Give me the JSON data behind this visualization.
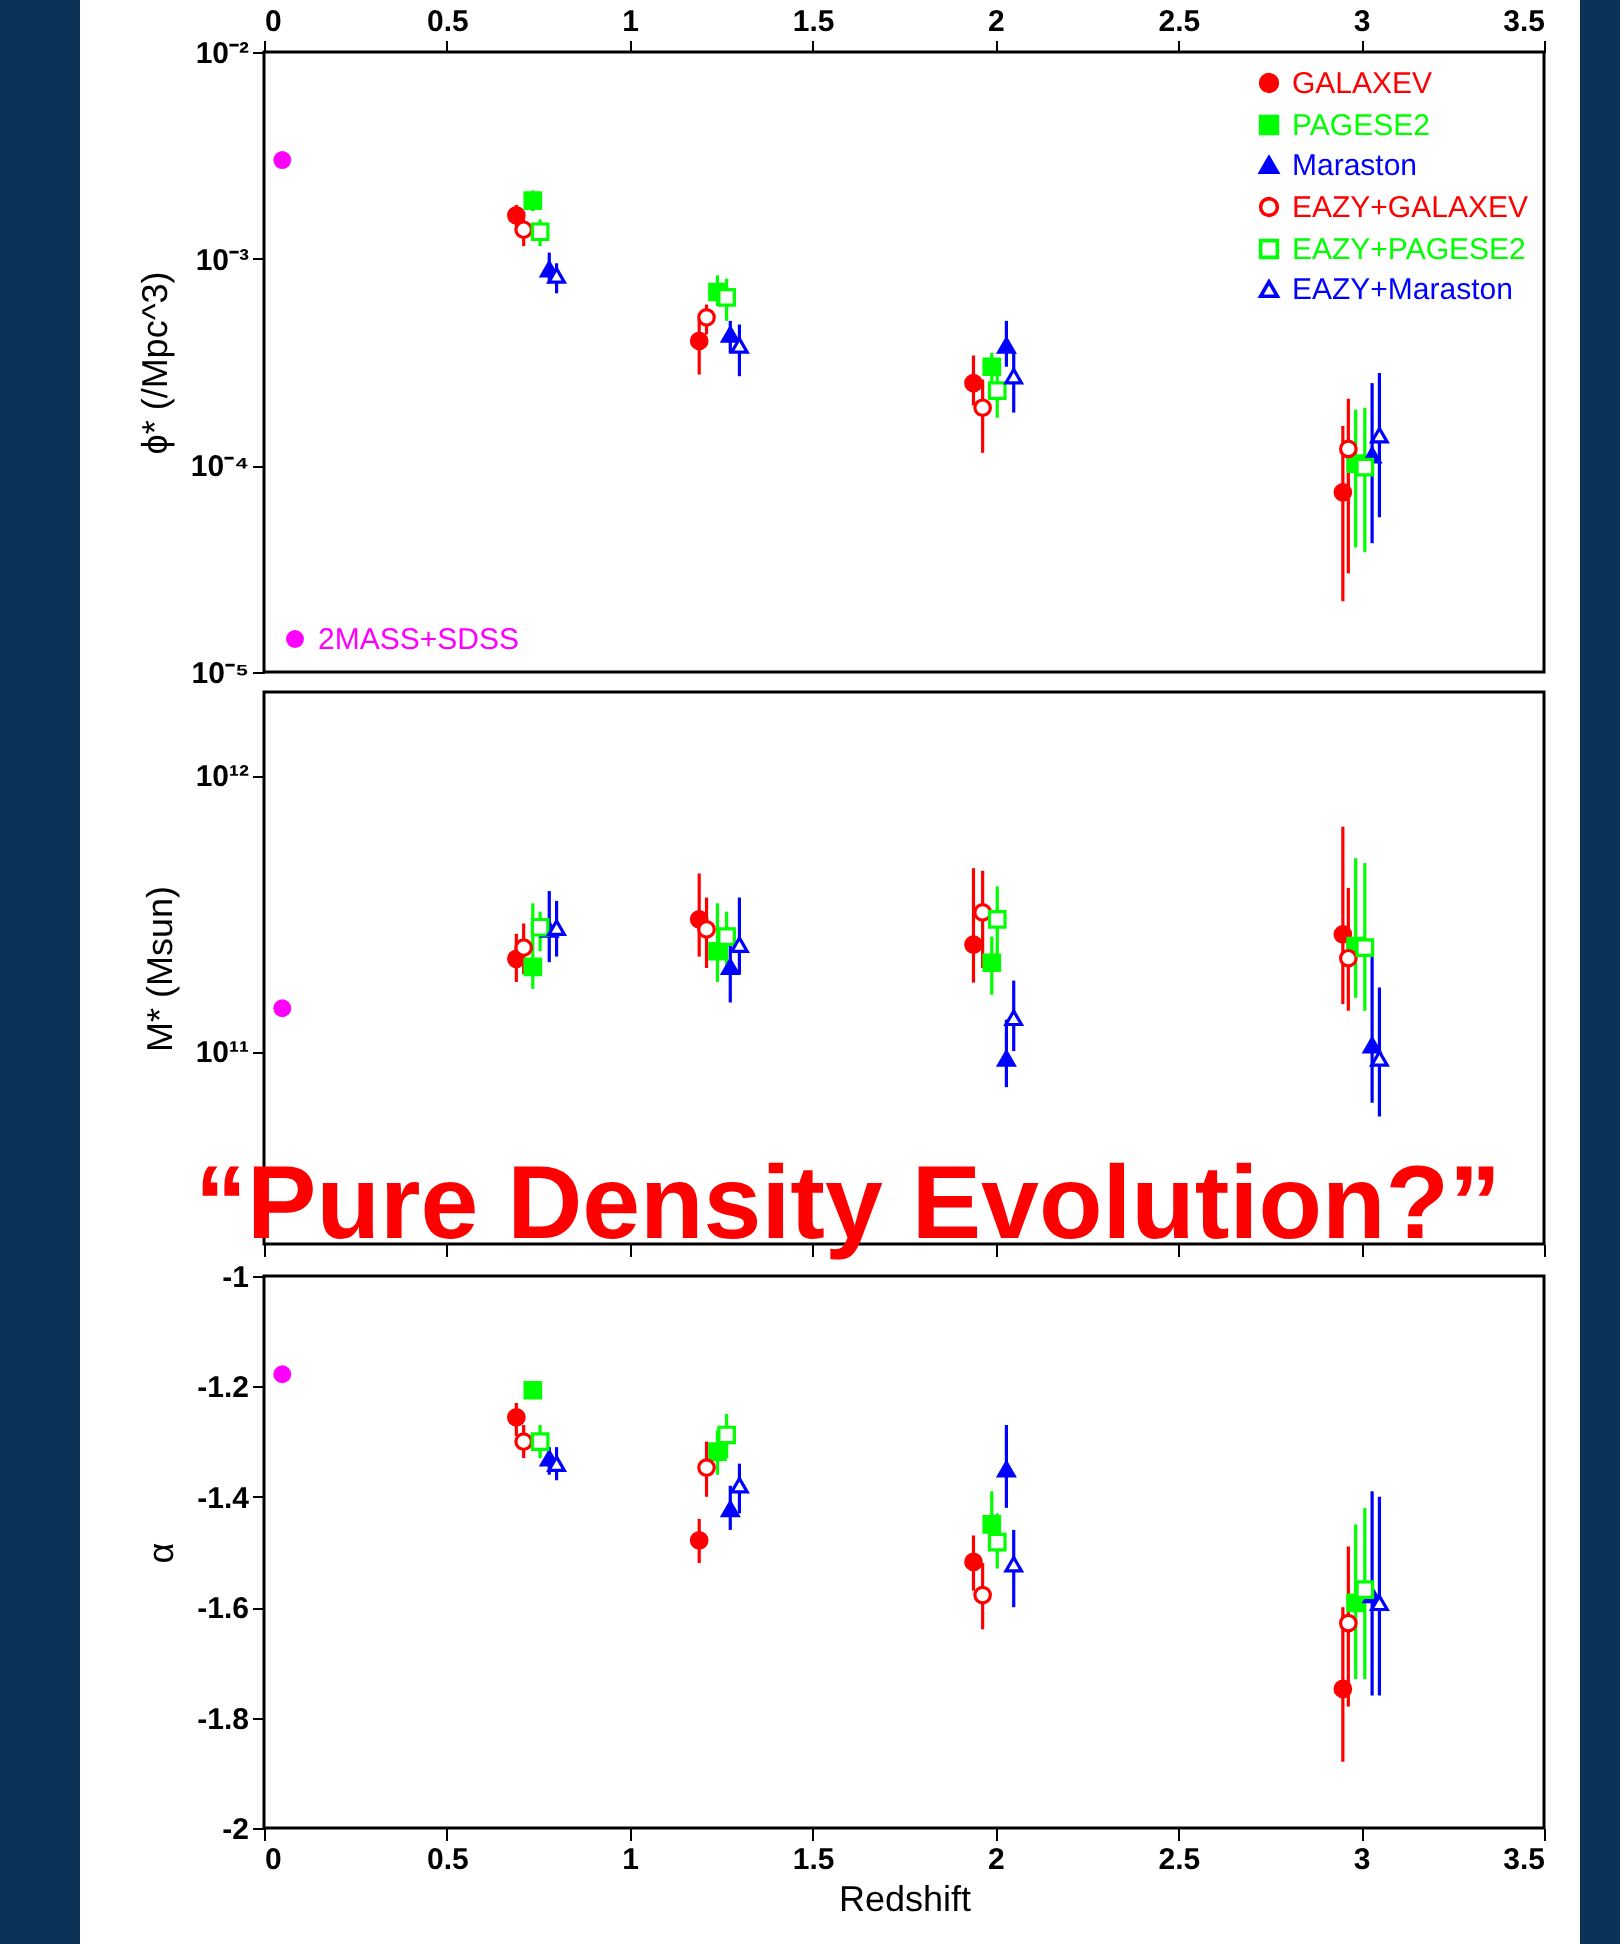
{
  "chart_data": [
    {
      "type": "scatter",
      "ylabel": "ϕ*  (/Mpc^3)",
      "log": "y",
      "xlim": [
        0,
        3.5
      ],
      "xticks": [
        0,
        0.5,
        1,
        1.5,
        2,
        2.5,
        3,
        3.5
      ],
      "ylim": [
        1e-05,
        0.01
      ],
      "yticks": [
        {
          "value": 1e-05,
          "label": "10⁻⁵"
        },
        {
          "value": 0.0001,
          "label": "10⁻⁴"
        },
        {
          "value": 0.001,
          "label": "10⁻³"
        },
        {
          "value": 0.01,
          "label": "10⁻²"
        }
      ],
      "legend": "top right",
      "series": [
        {
          "name": "GALAXEV",
          "color": "#ff0000",
          "marker": "circle",
          "x": [
            0.69,
            1.19,
            1.94,
            2.95
          ],
          "values": [
            0.00162,
            0.0004,
            0.00025,
            7.4e-05
          ],
          "errors": [
            [
              0.00138,
              0.00182
            ],
            [
              0.000275,
              0.00051
            ],
            [
              0.000195,
              0.00034
            ],
            [
              2.2e-05,
              0.000155
            ]
          ]
        },
        {
          "name": "PAGESE2",
          "color": "#00ff00",
          "marker": "square",
          "x": [
            0.735,
            1.24,
            1.99,
            2.985
          ],
          "values": [
            0.00191,
            0.00069,
            0.0003,
            0.000102
          ],
          "errors": [
            [
              0.0017,
              0.00214
            ],
            [
              0.00059,
              0.00083
            ],
            [
              0.00025,
              0.00035
            ],
            [
              4e-05,
              0.000186
            ]
          ]
        },
        {
          "name": "Maraston",
          "color": "#0000ff",
          "marker": "triangle",
          "x": [
            0.78,
            1.275,
            2.03,
            3.03
          ],
          "values": [
            0.00089,
            0.00043,
            0.00038,
            0.000112
          ],
          "errors": [
            [
              0.00076,
              0.00107
            ],
            [
              0.00035,
              0.0005
            ],
            [
              0.0003,
              0.0005
            ],
            [
              4.2e-05,
              0.00025
            ]
          ]
        },
        {
          "name": "EAZY+GALAXEV",
          "color": "#ff0000",
          "marker": "circle-open",
          "x": [
            0.71,
            1.21,
            1.965,
            2.965
          ],
          "values": [
            0.00138,
            0.00052,
            0.00019,
            0.00012
          ],
          "errors": [
            [
              0.00115,
              0.00155
            ],
            [
              0.00043,
              0.0006
            ],
            [
              0.000115,
              0.00026
            ],
            [
              3e-05,
              0.00021
            ]
          ]
        },
        {
          "name": "EAZY+PAGESE2",
          "color": "#00ff00",
          "marker": "square-open",
          "x": [
            0.755,
            1.265,
            2.005,
            3.01
          ],
          "values": [
            0.00135,
            0.00065,
            0.00023,
            9.8e-05
          ],
          "errors": [
            [
              0.00115,
              0.00155
            ],
            [
              0.0005,
              0.0008
            ],
            [
              0.00017,
              0.00032
            ],
            [
              3.8e-05,
              0.00019
            ]
          ]
        },
        {
          "name": "EAZY+Maraston",
          "color": "#0000ff",
          "marker": "triangle-open",
          "x": [
            0.8,
            1.3,
            2.05,
            3.05
          ],
          "values": [
            0.00083,
            0.00038,
            0.00027,
            0.00014
          ],
          "errors": [
            [
              0.00068,
              0.00095
            ],
            [
              0.00027,
              0.00048
            ],
            [
              0.00018,
              0.00035
            ],
            [
              5.6e-05,
              0.00028
            ]
          ]
        },
        {
          "name": "2MASS+SDSS",
          "color": "#ff00ff",
          "marker": "circle",
          "x": [
            0.05
          ],
          "values": [
            0.003
          ]
        }
      ]
    },
    {
      "type": "scatter",
      "ylabel": "M*  (Msun)",
      "log": "y",
      "xlim": [
        0,
        3.5
      ],
      "xticks": [
        0,
        0.5,
        1,
        1.5,
        2,
        2.5,
        3,
        3.5
      ],
      "tick_labels": "y",
      "ylim": [
        20000000000,
        2000000000000
      ],
      "yticks": [
        {
          "value": 100000000000,
          "label": "10¹¹"
        },
        {
          "value": 1000000000000,
          "label": "10¹²"
        }
      ],
      "annotations": [
        "“Pure Density Evolution?”"
      ],
      "series": [
        {
          "color": "#ff0000",
          "marker": "circle",
          "x": [
            0.69,
            1.19,
            1.94,
            2.95
          ],
          "values": [
            216000000000,
            300000000000,
            243000000000,
            265000000000
          ],
          "errors": [
            [
              178000000000,
              266000000000
            ],
            [
              220000000000,
              440000000000
            ],
            [
              177000000000,
              460000000000
            ],
            [
              148000000000,
              650000000000
            ]
          ]
        },
        {
          "color": "#00ff00",
          "marker": "square",
          "x": [
            0.735,
            1.24,
            1.99,
            2.985
          ],
          "values": [
            202000000000,
            230000000000,
            209000000000,
            240000000000
          ],
          "errors": [
            [
              168000000000,
              343000000000
            ],
            [
              178000000000,
              343000000000
            ],
            [
              160000000000,
              260000000000
            ],
            [
              156000000000,
              500000000000
            ]
          ]
        },
        {
          "color": "#0000ff",
          "marker": "triangle",
          "x": [
            0.78,
            1.275,
            2.03,
            3.03
          ],
          "values": [
            276000000000,
            202000000000,
            94000000000,
            105000000000
          ],
          "errors": [
            [
              210000000000,
              380000000000
            ],
            [
              150000000000,
              280000000000
            ],
            [
              74000000000,
              130000000000
            ],
            [
              65000000000,
              220000000000
            ]
          ]
        },
        {
          "color": "#ff0000",
          "marker": "circle-open",
          "x": [
            0.71,
            1.21,
            1.965,
            2.965
          ],
          "values": [
            237000000000,
            276000000000,
            318000000000,
            217000000000
          ],
          "errors": [
            [
              190000000000,
              290000000000
            ],
            [
              200000000000,
              360000000000
            ],
            [
              200000000000,
              450000000000
            ],
            [
              140000000000,
              390000000000
            ]
          ]
        },
        {
          "color": "#00ff00",
          "marker": "square-open",
          "x": [
            0.755,
            1.265,
            2.005,
            3.01
          ],
          "values": [
            281000000000,
            260000000000,
            300000000000,
            237000000000
          ],
          "errors": [
            [
              230000000000,
              320000000000
            ],
            [
              190000000000,
              320000000000
            ],
            [
              220000000000,
              395000000000
            ],
            [
              140000000000,
              480000000000
            ]
          ]
        },
        {
          "color": "#0000ff",
          "marker": "triangle-open",
          "x": [
            0.8,
            1.3,
            2.05,
            3.05
          ],
          "values": [
            280000000000,
            243000000000,
            132000000000,
            94000000000
          ],
          "errors": [
            [
              220000000000,
              350000000000
            ],
            [
              190000000000,
              360000000000
            ],
            [
              100000000000,
              180000000000
            ],
            [
              58000000000,
              170000000000
            ]
          ]
        },
        {
          "color": "#ff00ff",
          "marker": "circle",
          "x": [
            0.05
          ],
          "values": [
            143000000000
          ]
        }
      ]
    },
    {
      "type": "scatter",
      "ylabel": "α",
      "xlabel": "Redshift",
      "xlim": [
        0,
        3.5
      ],
      "xticks": [
        0,
        0.5,
        1,
        1.5,
        2,
        2.5,
        3,
        3.5
      ],
      "ylim": [
        -2,
        -1
      ],
      "yticks": [
        -2,
        -1.8,
        -1.6,
        -1.4,
        -1.2,
        -1
      ],
      "series": [
        {
          "color": "#ff0000",
          "marker": "circle",
          "x": [
            0.69,
            1.19,
            1.94,
            2.95
          ],
          "values": [
            -1.256,
            -1.479,
            -1.518,
            -1.748
          ],
          "errors": [
            [
              -1.29,
              -1.23
            ],
            [
              -1.52,
              -1.44
            ],
            [
              -1.57,
              -1.47
            ],
            [
              -1.88,
              -1.6
            ]
          ]
        },
        {
          "color": "#00ff00",
          "marker": "square",
          "x": [
            0.735,
            1.24,
            1.99,
            2.985
          ],
          "values": [
            -1.207,
            -1.318,
            -1.45,
            -1.592
          ],
          "errors": [
            [
              -1.22,
              -1.19
            ],
            [
              -1.36,
              -1.28
            ],
            [
              -1.49,
              -1.39
            ],
            [
              -1.73,
              -1.45
            ]
          ]
        },
        {
          "color": "#0000ff",
          "marker": "triangle",
          "x": [
            0.78,
            1.275,
            2.03,
            3.03
          ],
          "values": [
            -1.33,
            -1.422,
            -1.35,
            -1.578
          ],
          "errors": [
            [
              -1.36,
              -1.31
            ],
            [
              -1.46,
              -1.38
            ],
            [
              -1.42,
              -1.27
            ],
            [
              -1.76,
              -1.39
            ]
          ]
        },
        {
          "color": "#ff0000",
          "marker": "circle-open",
          "x": [
            0.71,
            1.21,
            1.965,
            2.965
          ],
          "values": [
            -1.3,
            -1.347,
            -1.578,
            -1.629
          ],
          "errors": [
            [
              -1.33,
              -1.27
            ],
            [
              -1.4,
              -1.3
            ],
            [
              -1.64,
              -1.52
            ],
            [
              -1.78,
              -1.49
            ]
          ]
        },
        {
          "color": "#00ff00",
          "marker": "square-open",
          "x": [
            0.755,
            1.265,
            2.005,
            3.01
          ],
          "values": [
            -1.3,
            -1.288,
            -1.482,
            -1.568
          ],
          "errors": [
            [
              -1.33,
              -1.27
            ],
            [
              -1.33,
              -1.25
            ],
            [
              -1.53,
              -1.43
            ],
            [
              -1.73,
              -1.42
            ]
          ]
        },
        {
          "color": "#0000ff",
          "marker": "triangle-open",
          "x": [
            0.8,
            1.3,
            2.05,
            3.05
          ],
          "values": [
            -1.34,
            -1.379,
            -1.522,
            -1.592
          ],
          "errors": [
            [
              -1.37,
              -1.31
            ],
            [
              -1.43,
              -1.34
            ],
            [
              -1.6,
              -1.46
            ],
            [
              -1.76,
              -1.4
            ]
          ]
        },
        {
          "color": "#ff00ff",
          "marker": "circle",
          "x": [
            0.05
          ],
          "values": [
            -1.178
          ]
        }
      ]
    }
  ]
}
